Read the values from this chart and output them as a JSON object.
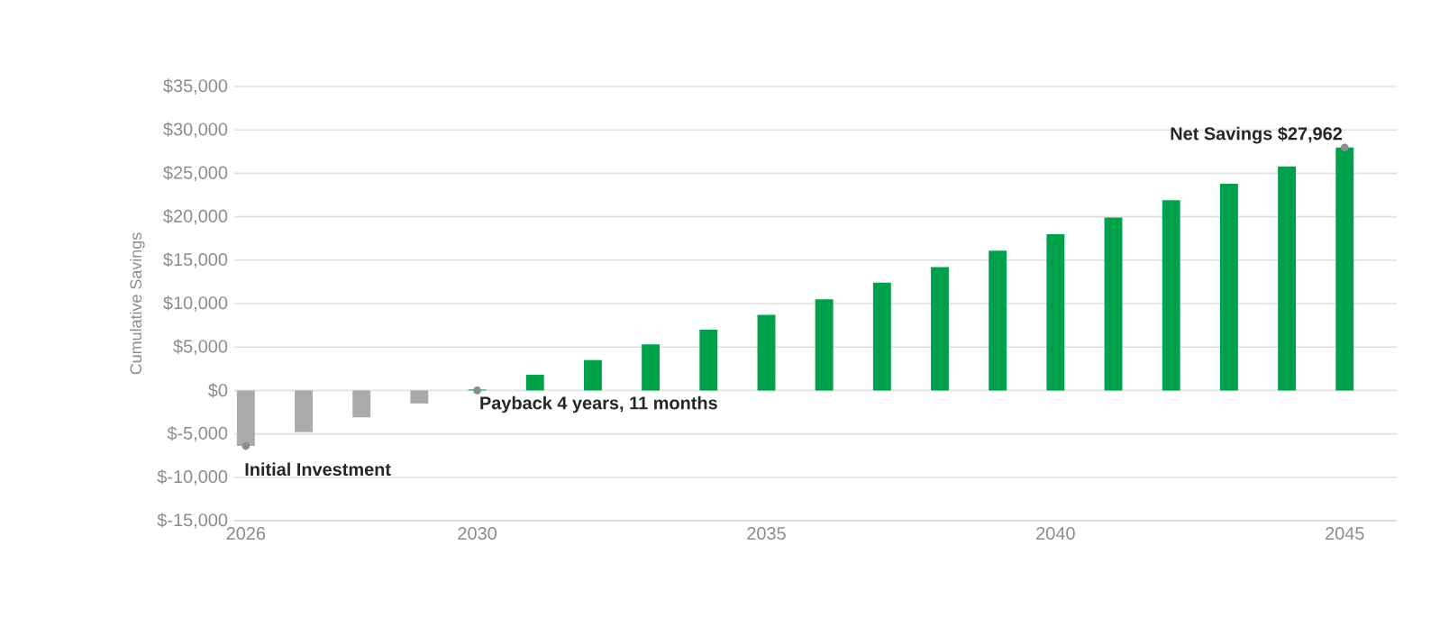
{
  "chart_data": {
    "type": "bar",
    "ylabel": "Cumulative Savings",
    "x": [
      2026,
      2027,
      2028,
      2029,
      2030,
      2031,
      2032,
      2033,
      2034,
      2035,
      2036,
      2037,
      2038,
      2039,
      2040,
      2041,
      2042,
      2043,
      2044,
      2045
    ],
    "values": [
      -6400,
      -4800,
      -3100,
      -1500,
      100,
      1800,
      3500,
      5300,
      7000,
      8700,
      10500,
      12400,
      14200,
      16100,
      18000,
      19900,
      21900,
      23800,
      25800,
      27962
    ],
    "colors": [
      "#aaaaaa",
      "#aaaaaa",
      "#aaaaaa",
      "#aaaaaa",
      "#00a14b",
      "#00a14b",
      "#00a14b",
      "#00a14b",
      "#00a14b",
      "#00a14b",
      "#00a14b",
      "#00a14b",
      "#00a14b",
      "#00a14b",
      "#00a14b",
      "#00a14b",
      "#00a14b",
      "#00a14b",
      "#00a14b",
      "#00a14b"
    ],
    "xlim": [
      2025.8,
      2045.9
    ],
    "xticks": [
      2026,
      2030,
      2035,
      2040,
      2045
    ],
    "ylim": [
      -15000,
      35000
    ],
    "yticks": [
      {
        "value": -15000,
        "label": "$-15,000"
      },
      {
        "value": -10000,
        "label": "$-10,000"
      },
      {
        "value": -5000,
        "label": "$-5,000"
      },
      {
        "value": 0,
        "label": "$0"
      },
      {
        "value": 5000,
        "label": "$5,000"
      },
      {
        "value": 10000,
        "label": "$10,000"
      },
      {
        "value": 15000,
        "label": "$15,000"
      },
      {
        "value": 20000,
        "label": "$20,000"
      },
      {
        "value": 25000,
        "label": "$25,000"
      },
      {
        "value": 30000,
        "label": "$30,000"
      },
      {
        "value": 35000,
        "label": "$35,000"
      }
    ],
    "grid": "y",
    "annotations": [
      {
        "text": "Initial Investment",
        "x": 2026,
        "y": -6400
      },
      {
        "text": "Payback 4 years, 11 months",
        "x": 2030,
        "y": 0
      },
      {
        "text": "Net Savings $27,962",
        "x": 2045,
        "y": 27962
      }
    ]
  }
}
